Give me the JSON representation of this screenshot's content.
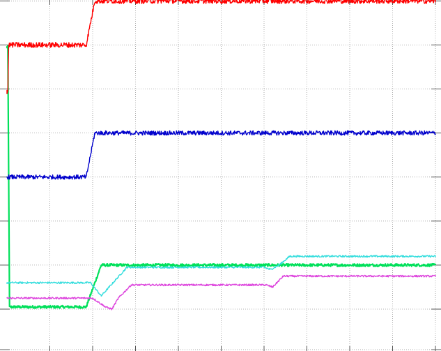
{
  "chart_data": {
    "type": "line",
    "title": "",
    "xlabel": "",
    "ylabel": "",
    "grid": true,
    "legend": "none",
    "x_divisions": 10,
    "y_divisions": 8,
    "xlim": [
      0,
      10
    ],
    "ylim": [
      0,
      8
    ],
    "series": [
      {
        "color": "#ff0000",
        "noise": 0.06,
        "points": [
          [
            0,
            4.95
          ],
          [
            0.02,
            4.95
          ],
          [
            0.04,
            6.0
          ],
          [
            1.85,
            6.0
          ],
          [
            2.05,
            7.0
          ],
          [
            2.2,
            7.0
          ],
          [
            10,
            7.0
          ]
        ]
      },
      {
        "color": "#0000cc",
        "noise": 0.05,
        "points": [
          [
            0,
            3.0
          ],
          [
            1.85,
            3.0
          ],
          [
            2.05,
            4.0
          ],
          [
            2.2,
            4.0
          ],
          [
            10,
            4.0
          ]
        ]
      },
      {
        "color": "#00e05a",
        "noise": 0.03,
        "points": [
          [
            0,
            5.95
          ],
          [
            0.02,
            5.95
          ],
          [
            0.06,
            0.05
          ],
          [
            1.85,
            0.05
          ],
          [
            2.2,
            1.0
          ],
          [
            10,
            1.0
          ]
        ]
      },
      {
        "color": "#33dddd",
        "noise": 0.02,
        "points": [
          [
            0,
            0.6
          ],
          [
            1.95,
            0.6
          ],
          [
            2.2,
            0.3
          ],
          [
            2.8,
            0.95
          ],
          [
            6.0,
            0.95
          ],
          [
            6.15,
            0.9
          ],
          [
            6.35,
            1.0
          ],
          [
            6.6,
            1.2
          ],
          [
            10,
            1.2
          ]
        ]
      },
      {
        "color": "#dd44dd",
        "noise": 0.02,
        "points": [
          [
            0,
            0.25
          ],
          [
            2.0,
            0.25
          ],
          [
            2.3,
            0.05
          ],
          [
            2.45,
            0.0
          ],
          [
            2.6,
            0.25
          ],
          [
            2.9,
            0.55
          ],
          [
            6.05,
            0.55
          ],
          [
            6.2,
            0.5
          ],
          [
            6.35,
            0.65
          ],
          [
            6.45,
            0.75
          ],
          [
            10,
            0.75
          ]
        ]
      }
    ]
  }
}
